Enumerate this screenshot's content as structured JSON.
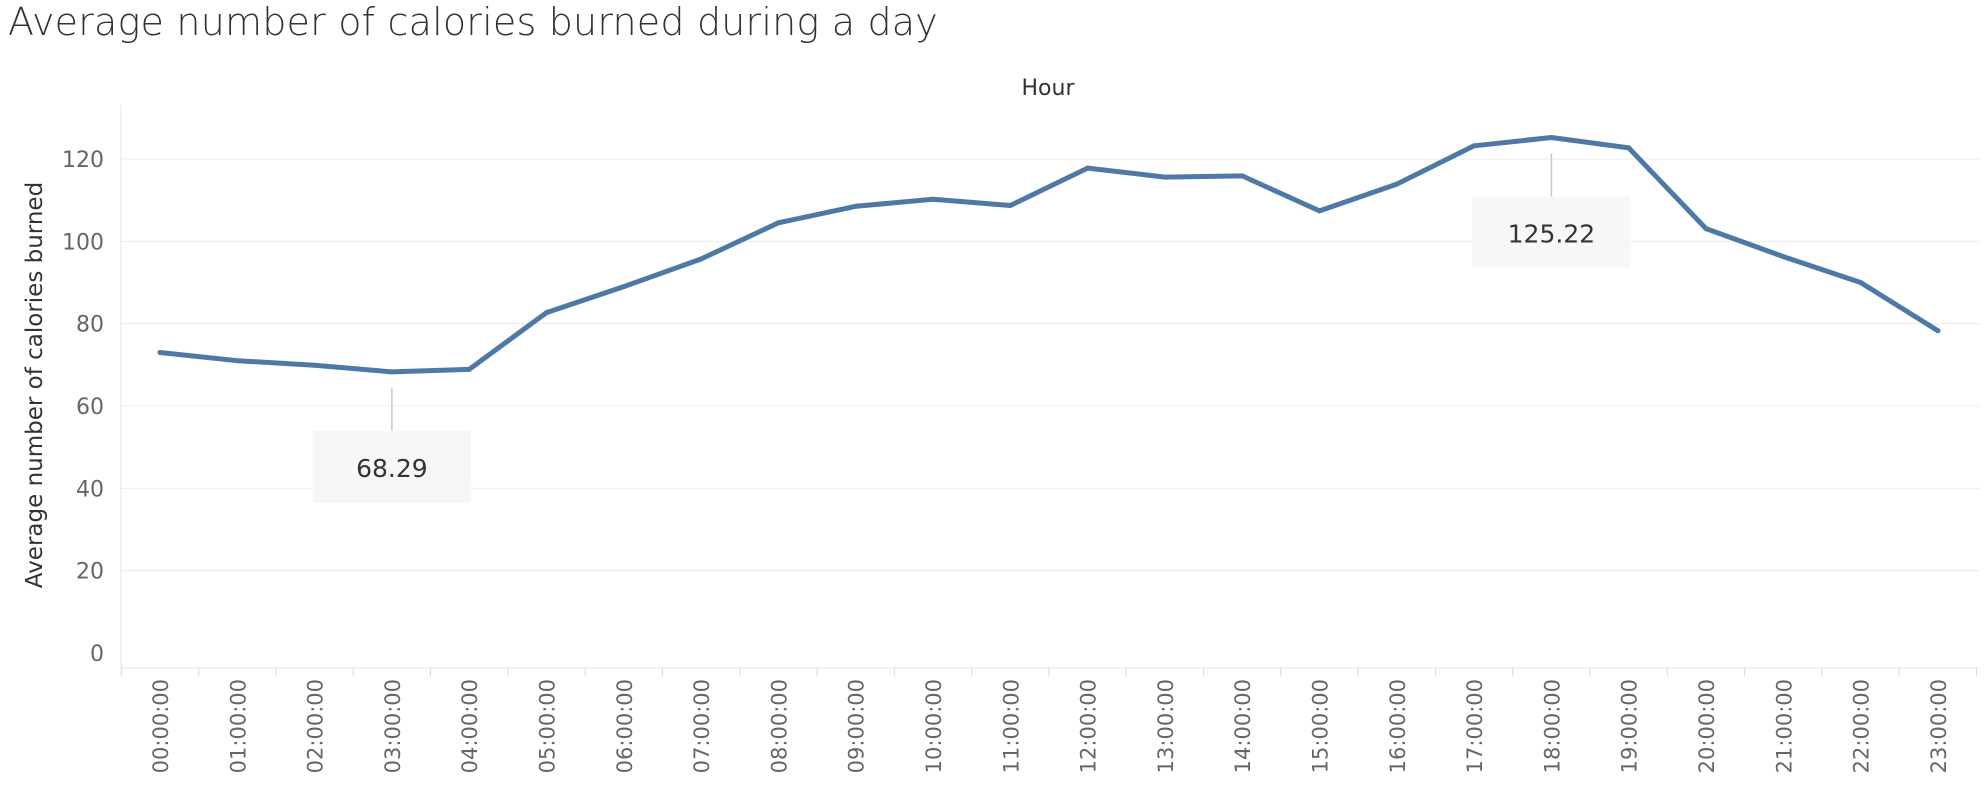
{
  "chart_data": {
    "type": "line",
    "title": "Average number of calories burned during a day",
    "xlabel": "Hour",
    "ylabel": "Average number of calories burned",
    "x": [
      "00:00:00",
      "01:00:00",
      "02:00:00",
      "03:00:00",
      "04:00:00",
      "05:00:00",
      "06:00:00",
      "07:00:00",
      "08:00:00",
      "09:00:00",
      "10:00:00",
      "11:00:00",
      "12:00:00",
      "13:00:00",
      "14:00:00",
      "15:00:00",
      "16:00:00",
      "17:00:00",
      "18:00:00",
      "19:00:00",
      "20:00:00",
      "21:00:00",
      "22:00:00",
      "23:00:00"
    ],
    "series": [
      {
        "values": [
          73.0,
          71.0,
          69.9,
          68.29,
          68.9,
          82.7,
          89.0,
          95.7,
          104.5,
          108.5,
          110.2,
          108.7,
          117.8,
          115.6,
          115.9,
          107.4,
          113.9,
          123.2,
          125.22,
          122.7,
          103.1,
          96.3,
          90.0,
          78.3
        ],
        "color": "#4e79a7"
      }
    ],
    "ylim": [
      0,
      130
    ],
    "yticks": [
      0,
      20,
      40,
      60,
      80,
      100,
      120
    ],
    "grid": true,
    "annotations": [
      {
        "x": "03:00:00",
        "label": "68.29"
      },
      {
        "x": "18:00:00",
        "label": "125.22"
      }
    ]
  }
}
